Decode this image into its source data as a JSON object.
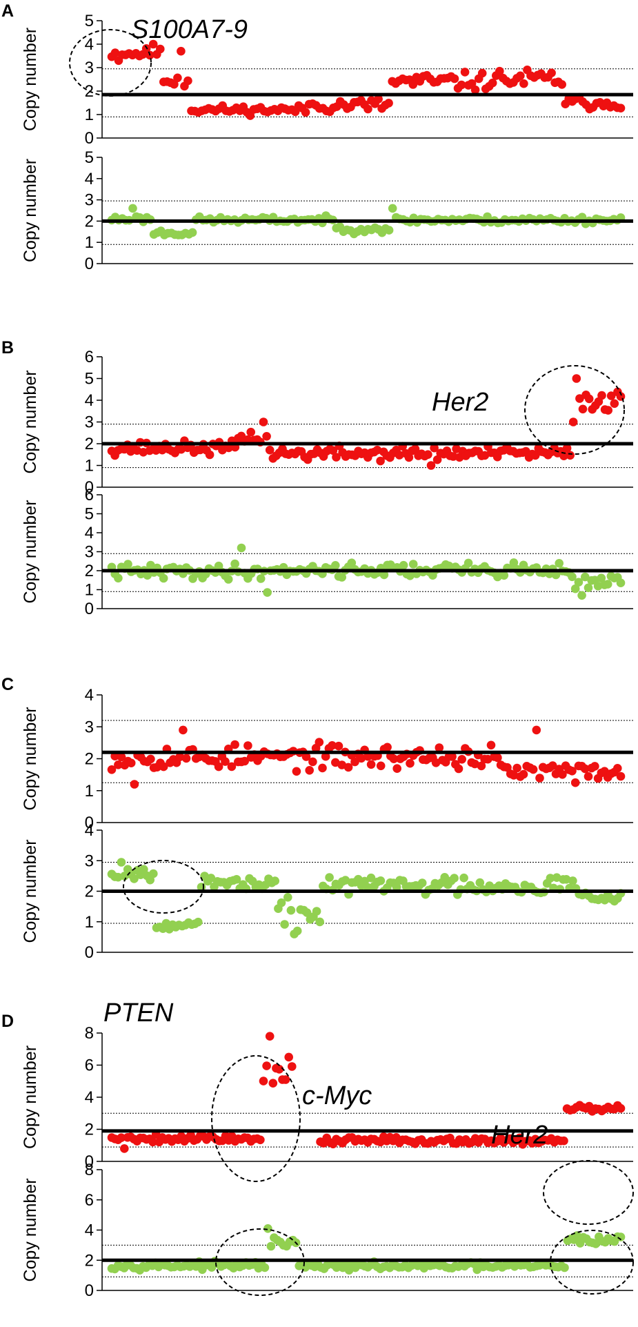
{
  "colors": {
    "red": "#ee1111",
    "green": "#92d050",
    "axis": "#000000"
  },
  "gene_labels": {
    "s100a7": "S100A7-9",
    "her2_b": "Her2",
    "pten": "PTEN",
    "cmyc": "c-Myc",
    "her2_d": "Her2"
  },
  "chart_data": [
    {
      "type": "scatter",
      "panel": "A",
      "plot": "top",
      "color": "red",
      "ylabel": "Copy number",
      "ylim": [
        0,
        5
      ],
      "ticks": [
        0,
        1,
        2,
        3,
        4,
        5
      ],
      "baseline": 1.85,
      "thresholds": [
        0.9,
        2.95
      ],
      "segments": [
        {
          "n": 15,
          "m": 3.6,
          "s": 0.2
        },
        {
          "n": 8,
          "m": 2.5,
          "s": 0.35
        },
        {
          "n": 34,
          "m": 1.2,
          "s": 0.17
        },
        {
          "n": 24,
          "m": 1.4,
          "s": 0.3
        },
        {
          "n": 28,
          "m": 2.4,
          "s": 0.35
        },
        {
          "n": 22,
          "m": 2.5,
          "s": 0.4
        },
        {
          "n": 17,
          "m": 1.5,
          "s": 0.25
        }
      ],
      "extra": [
        {
          "i": 12,
          "v": 4.0
        },
        {
          "i": 20,
          "v": 3.7
        },
        {
          "i": 2,
          "v": 3.3
        }
      ],
      "seed": 11
    },
    {
      "type": "scatter",
      "panel": "A",
      "plot": "bottom",
      "color": "green",
      "ylabel": "Copy number",
      "ylim": [
        0,
        5
      ],
      "ticks": [
        0,
        1,
        2,
        3,
        4,
        5
      ],
      "baseline": 2.0,
      "thresholds": [
        0.9,
        2.95
      ],
      "segments": [
        {
          "n": 12,
          "m": 2.1,
          "s": 0.15
        },
        {
          "n": 12,
          "m": 1.45,
          "s": 0.15
        },
        {
          "n": 40,
          "m": 2.05,
          "s": 0.14
        },
        {
          "n": 16,
          "m": 1.65,
          "s": 0.18
        },
        {
          "n": 66,
          "m": 2.05,
          "s": 0.15
        }
      ],
      "extra": [
        {
          "i": 6,
          "v": 2.6
        },
        {
          "i": 80,
          "v": 2.6
        }
      ],
      "seed": 23
    },
    {
      "type": "scatter",
      "panel": "B",
      "plot": "top",
      "color": "red",
      "ylabel": "Copy number",
      "ylim": [
        0,
        6
      ],
      "ticks": [
        0,
        1,
        2,
        3,
        4,
        5,
        6
      ],
      "baseline": 2.0,
      "thresholds": [
        0.9,
        2.9
      ],
      "segments": [
        {
          "n": 40,
          "m": 1.8,
          "s": 0.28
        },
        {
          "n": 10,
          "m": 2.3,
          "s": 0.3
        },
        {
          "n": 96,
          "m": 1.55,
          "s": 0.3
        },
        {
          "n": 16,
          "m": 4.0,
          "s": 0.45
        }
      ],
      "extra": [
        {
          "i": 48,
          "v": 3.0
        },
        {
          "i": 101,
          "v": 1.0
        },
        {
          "i": 147,
          "v": 5.0
        },
        {
          "i": 146,
          "v": 3.0
        }
      ],
      "seed": 37
    },
    {
      "type": "scatter",
      "panel": "B",
      "plot": "bottom",
      "color": "green",
      "ylabel": "Copy number",
      "ylim": [
        0,
        6
      ],
      "ticks": [
        0,
        1,
        2,
        3,
        4,
        5,
        6
      ],
      "baseline": 2.0,
      "thresholds": [
        0.9,
        2.9
      ],
      "segments": [
        {
          "n": 50,
          "m": 1.95,
          "s": 0.35
        },
        {
          "n": 92,
          "m": 2.05,
          "s": 0.35
        },
        {
          "n": 16,
          "m": 1.4,
          "s": 0.35
        }
      ],
      "extra": [
        {
          "i": 40,
          "v": 3.2
        },
        {
          "i": 48,
          "v": 0.85
        },
        {
          "i": 145,
          "v": 0.7
        }
      ],
      "seed": 41
    },
    {
      "type": "scatter",
      "panel": "C",
      "plot": "top",
      "color": "red",
      "ylabel": "Copy number",
      "ylim": [
        0,
        4
      ],
      "ticks": [
        0,
        1,
        2,
        3,
        4
      ],
      "baseline": 2.2,
      "thresholds": [
        1.25,
        3.2
      ],
      "segments": [
        {
          "n": 120,
          "m": 2.05,
          "s": 0.35
        },
        {
          "n": 38,
          "m": 1.6,
          "s": 0.25
        }
      ],
      "extra": [
        {
          "i": 7,
          "v": 1.2
        },
        {
          "i": 22,
          "v": 2.9
        },
        {
          "i": 131,
          "v": 2.9
        },
        {
          "i": 143,
          "v": 1.25
        }
      ],
      "seed": 53
    },
    {
      "type": "scatter",
      "panel": "C",
      "plot": "bottom",
      "color": "green",
      "ylabel": "Copy number",
      "ylim": [
        0,
        4
      ],
      "ticks": [
        0,
        1,
        2,
        3,
        4
      ],
      "baseline": 2.0,
      "thresholds": [
        0.95,
        2.95
      ],
      "segments": [
        {
          "n": 14,
          "m": 2.6,
          "s": 0.2
        },
        {
          "n": 14,
          "m": 0.9,
          "s": 0.12
        },
        {
          "n": 24,
          "m": 2.25,
          "s": 0.2
        },
        {
          "n": 14,
          "m": 1.3,
          "s": 0.35
        },
        {
          "n": 80,
          "m": 2.2,
          "s": 0.3
        },
        {
          "n": 14,
          "m": 1.85,
          "s": 0.15
        }
      ],
      "extra": [
        {
          "i": 57,
          "v": 0.6
        },
        {
          "i": 58,
          "v": 0.7
        },
        {
          "i": 3,
          "v": 2.95
        }
      ],
      "seed": 67
    },
    {
      "type": "scatter",
      "panel": "D",
      "plot": "top",
      "color": "red",
      "ylabel": "Copy number",
      "ylim": [
        0,
        8
      ],
      "ticks": [
        0,
        2,
        4,
        6,
        8
      ],
      "baseline": 1.9,
      "thresholds": [
        0.9,
        3.0
      ],
      "segments": [
        {
          "n": 48,
          "m": 1.45,
          "s": 0.25
        },
        {
          "n": 10,
          "m": 5.2,
          "s": 0.9
        },
        {
          "n": 86,
          "m": 1.3,
          "s": 0.2
        },
        {
          "n": 18,
          "m": 3.25,
          "s": 0.3
        }
      ],
      "gap": [
        [
          58,
          66
        ]
      ],
      "extra": [
        {
          "i": 50,
          "v": 7.8
        },
        {
          "i": 56,
          "v": 6.5
        },
        {
          "i": 4,
          "v": 0.8
        }
      ],
      "seed": 79
    },
    {
      "type": "scatter",
      "panel": "D",
      "plot": "bottom",
      "color": "green",
      "ylabel": "Copy number",
      "ylim": [
        0,
        8
      ],
      "ticks": [
        0,
        2,
        4,
        6,
        8
      ],
      "baseline": 2.0,
      "thresholds": [
        0.9,
        3.0
      ],
      "segments": [
        {
          "n": 50,
          "m": 1.65,
          "s": 0.2
        },
        {
          "n": 10,
          "m": 3.1,
          "s": 0.35
        },
        {
          "n": 86,
          "m": 1.6,
          "s": 0.2
        },
        {
          "n": 18,
          "m": 3.35,
          "s": 0.3
        }
      ],
      "extra": [
        {
          "i": 50,
          "v": 4.1
        }
      ],
      "seed": 97
    }
  ],
  "panels": [
    "A",
    "B",
    "C",
    "D"
  ]
}
